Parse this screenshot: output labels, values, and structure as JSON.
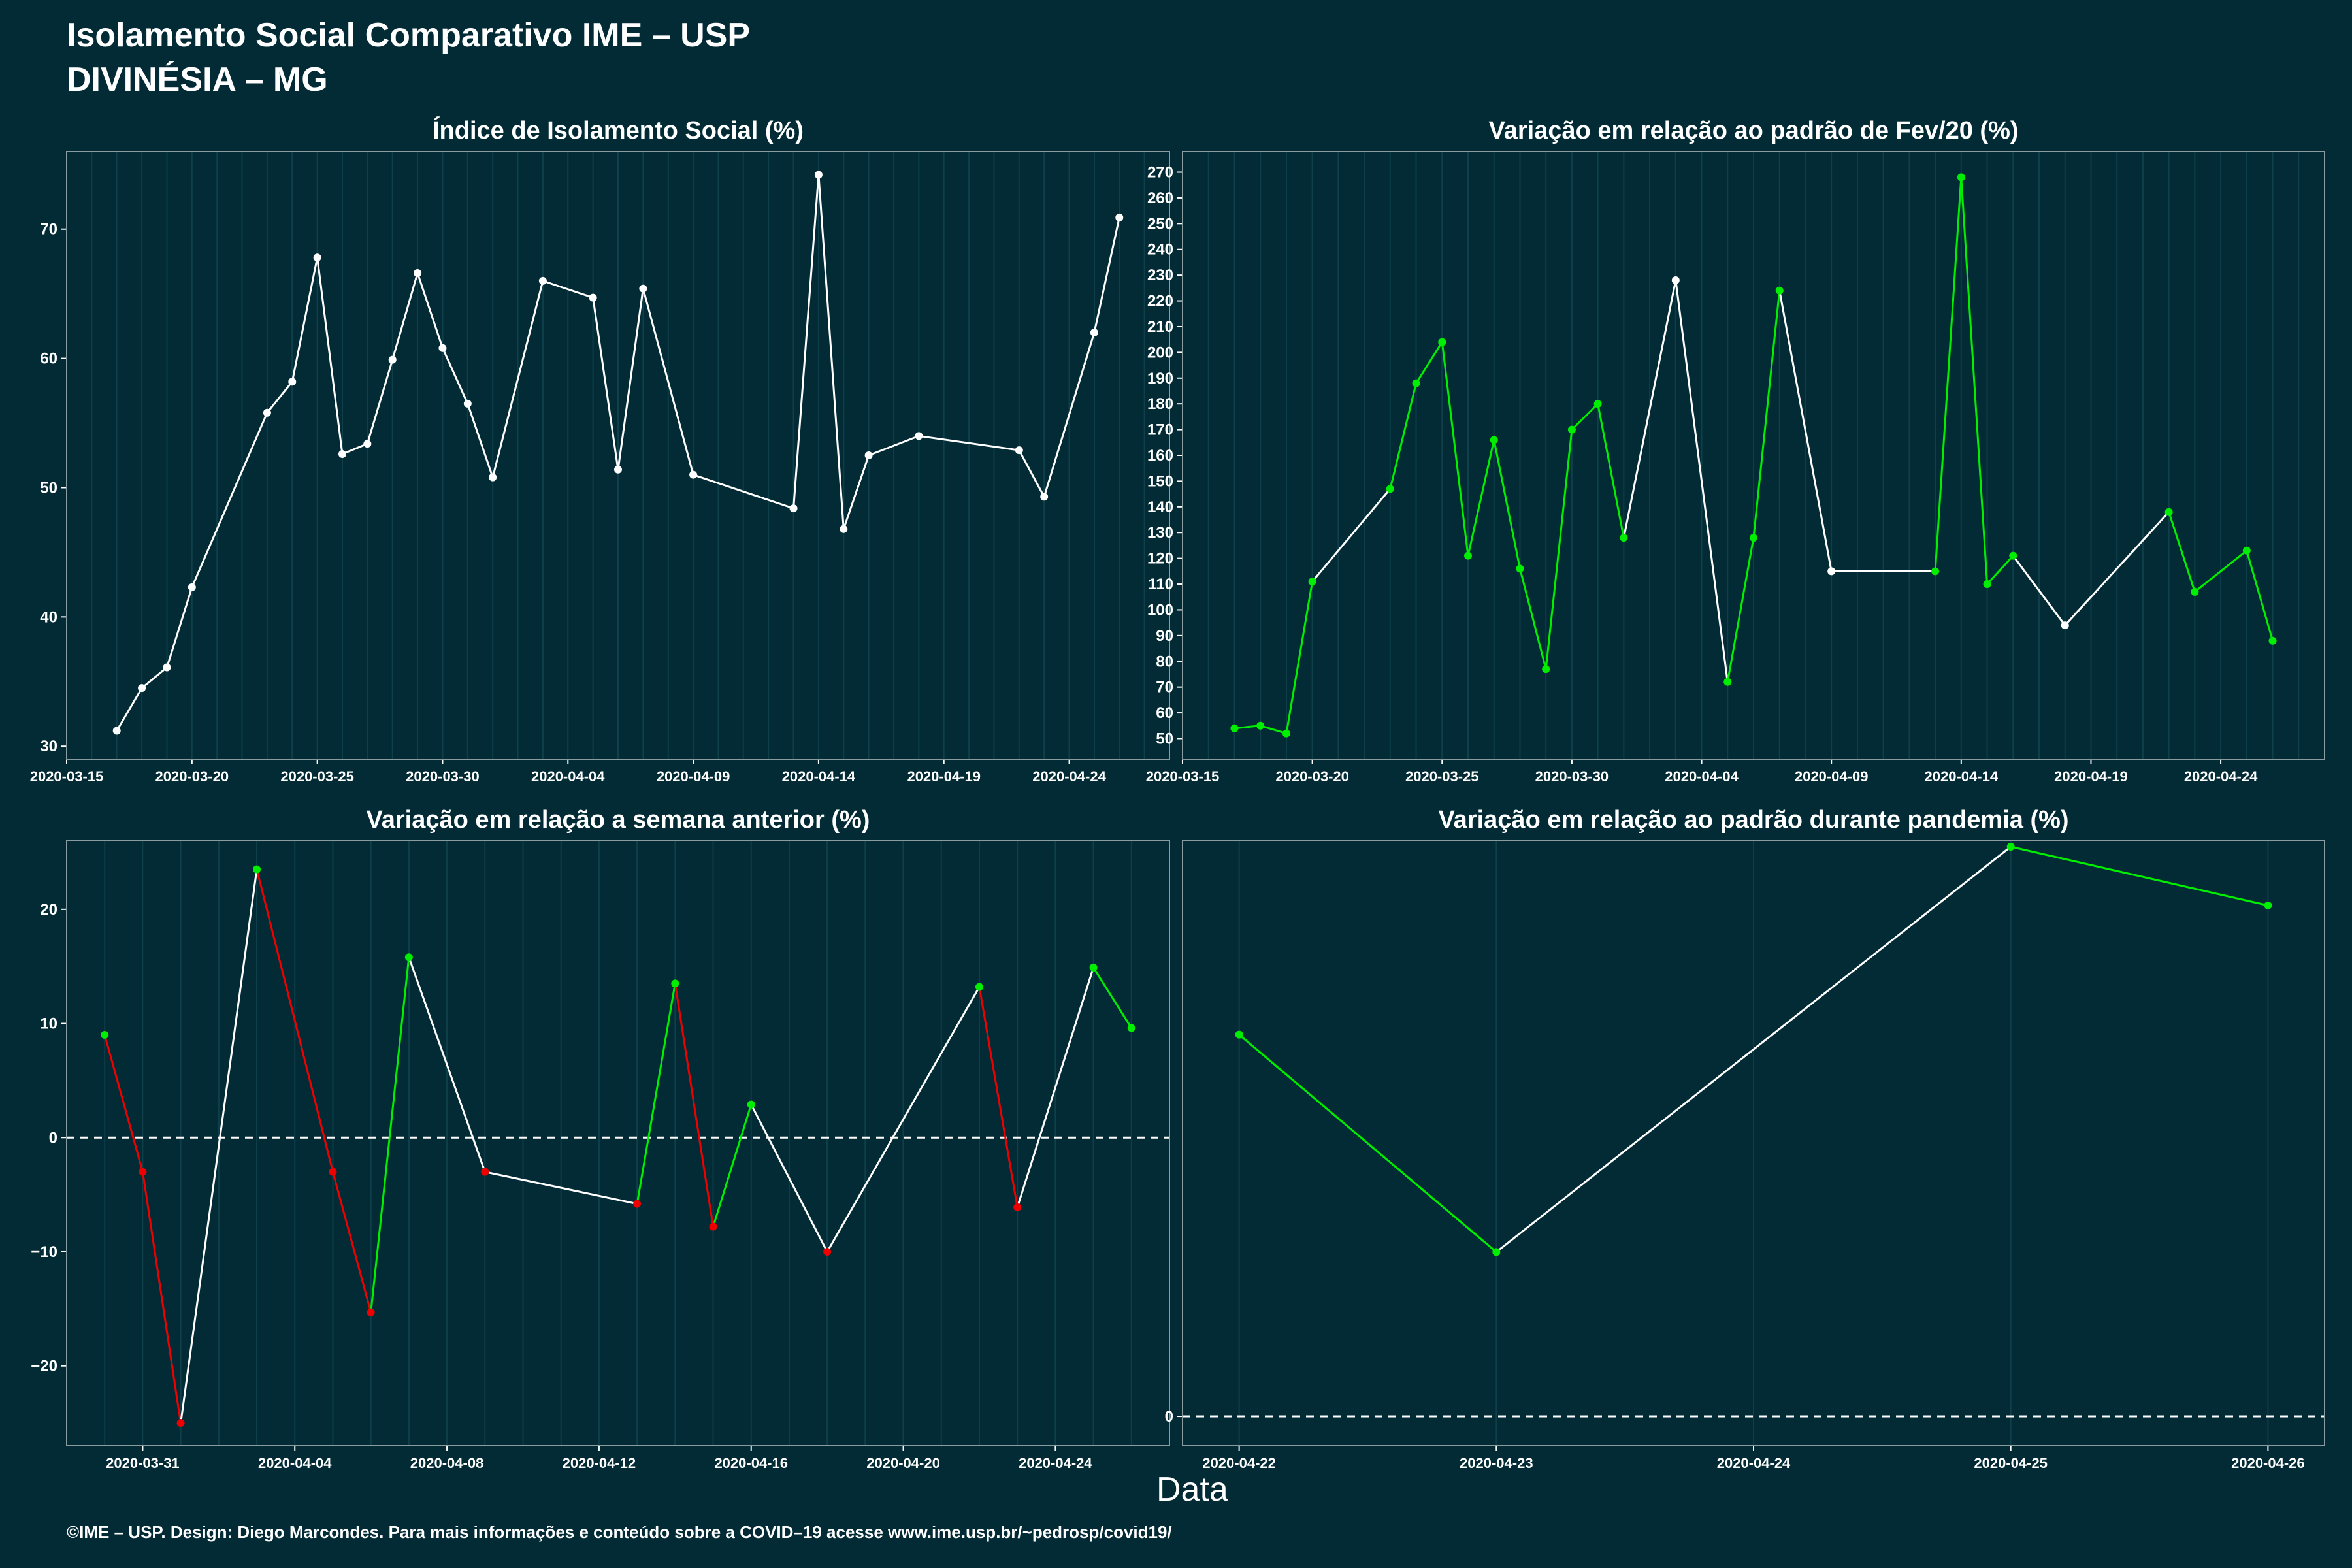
{
  "header": {
    "title_line1": "Isolamento Social Comparativo IME – USP",
    "title_line2": "DIVINÉSIA – MG"
  },
  "x_axis_label": "Data",
  "caption": "©IME – USP. Design: Diego Marcondes. Para mais informações e conteúdo sobre a COVID–19 acesse www.ime.usp.br/~pedrosp/covid19/",
  "colors": {
    "background": "#022b36",
    "line_neutral": "#ffffff",
    "increase": "#00ee00",
    "decrease": "#ee0000",
    "grid": "#0e3f4a"
  },
  "chart_data": [
    {
      "type": "line",
      "title": "Índice de Isolamento Social (%)",
      "xlim": [
        "2020-03-15",
        "2020-04-28"
      ],
      "ylim": [
        29,
        76
      ],
      "x_ticks": [
        "2020-03-15",
        "2020-03-20",
        "2020-03-25",
        "2020-03-30",
        "2020-04-04",
        "2020-04-09",
        "2020-04-14",
        "2020-04-19",
        "2020-04-24"
      ],
      "y_ticks": [
        30,
        40,
        50,
        60,
        70
      ],
      "color_mode": "none",
      "points": [
        [
          "2020-03-17",
          31.2
        ],
        [
          "2020-03-18",
          34.5
        ],
        [
          "2020-03-19",
          36.1
        ],
        [
          "2020-03-20",
          42.3
        ],
        [
          "2020-03-23",
          55.8
        ],
        [
          "2020-03-24",
          58.2
        ],
        [
          "2020-03-25",
          67.8
        ],
        [
          "2020-03-26",
          52.6
        ],
        [
          "2020-03-27",
          53.4
        ],
        [
          "2020-03-28",
          59.9
        ],
        [
          "2020-03-29",
          66.6
        ],
        [
          "2020-03-30",
          60.8
        ],
        [
          "2020-03-31",
          56.5
        ],
        [
          "2020-04-01",
          50.8
        ],
        [
          "2020-04-03",
          66.0
        ],
        [
          "2020-04-05",
          64.7
        ],
        [
          "2020-04-06",
          51.4
        ],
        [
          "2020-04-07",
          65.4
        ],
        [
          "2020-04-09",
          51.0
        ],
        [
          "2020-04-13",
          48.4
        ],
        [
          "2020-04-14",
          74.2
        ],
        [
          "2020-04-15",
          46.8
        ],
        [
          "2020-04-16",
          52.5
        ],
        [
          "2020-04-18",
          54.0
        ],
        [
          "2020-04-22",
          52.9
        ],
        [
          "2020-04-23",
          49.3
        ],
        [
          "2020-04-25",
          62.0
        ],
        [
          "2020-04-26",
          70.9
        ]
      ]
    },
    {
      "type": "line",
      "title": "Variação em relação ao padrão de Fev/20 (%)",
      "xlim": [
        "2020-03-15",
        "2020-04-28"
      ],
      "ylim": [
        42,
        278
      ],
      "x_ticks": [
        "2020-03-15",
        "2020-03-20",
        "2020-03-25",
        "2020-03-30",
        "2020-04-04",
        "2020-04-09",
        "2020-04-14",
        "2020-04-19",
        "2020-04-24"
      ],
      "y_ticks": [
        50,
        60,
        70,
        80,
        90,
        100,
        110,
        120,
        130,
        140,
        150,
        160,
        170,
        180,
        190,
        200,
        210,
        220,
        230,
        240,
        250,
        260,
        270
      ],
      "color_mode": "green_white",
      "points": [
        [
          "2020-03-17",
          54
        ],
        [
          "2020-03-18",
          55
        ],
        [
          "2020-03-19",
          52
        ],
        [
          "2020-03-20",
          111
        ],
        [
          "2020-03-23",
          147
        ],
        [
          "2020-03-24",
          188
        ],
        [
          "2020-03-25",
          204
        ],
        [
          "2020-03-26",
          121
        ],
        [
          "2020-03-27",
          166
        ],
        [
          "2020-03-28",
          116
        ],
        [
          "2020-03-29",
          77
        ],
        [
          "2020-03-30",
          170
        ],
        [
          "2020-03-31",
          180
        ],
        [
          "2020-04-01",
          128
        ],
        [
          "2020-04-03",
          228
        ],
        [
          "2020-04-05",
          72
        ],
        [
          "2020-04-06",
          128
        ],
        [
          "2020-04-07",
          224
        ],
        [
          "2020-04-09",
          115
        ],
        [
          "2020-04-13",
          115
        ],
        [
          "2020-04-14",
          268
        ],
        [
          "2020-04-15",
          110
        ],
        [
          "2020-04-16",
          121
        ],
        [
          "2020-04-18",
          94
        ],
        [
          "2020-04-22",
          138
        ],
        [
          "2020-04-23",
          107
        ],
        [
          "2020-04-25",
          123
        ],
        [
          "2020-04-26",
          88
        ]
      ],
      "segment_colors": [
        "g",
        "g",
        "g",
        "w",
        "g",
        "g",
        "g",
        "g",
        "g",
        "g",
        "g",
        "g",
        "g",
        "w",
        "w",
        "g",
        "g",
        "w",
        "w",
        "g",
        "g",
        "g",
        "w",
        "w",
        "g",
        "g",
        "g"
      ]
    },
    {
      "type": "line",
      "title": "Variação em relação a semana anterior (%)",
      "xlim": [
        "2020-03-29",
        "2020-04-27"
      ],
      "ylim": [
        -27,
        26
      ],
      "x_ticks": [
        "2020-03-31",
        "2020-04-04",
        "2020-04-08",
        "2020-04-12",
        "2020-04-16",
        "2020-04-20",
        "2020-04-24"
      ],
      "y_ticks": [
        -20,
        -10,
        0,
        10,
        20
      ],
      "zero_line": true,
      "color_mode": "gain_loss",
      "points": [
        [
          "2020-03-30",
          9.0
        ],
        [
          "2020-03-31",
          -3.0
        ],
        [
          "2020-04-01",
          -25.0
        ],
        [
          "2020-04-03",
          23.5
        ],
        [
          "2020-04-05",
          -3.0
        ],
        [
          "2020-04-06",
          -15.3
        ],
        [
          "2020-04-07",
          15.8
        ],
        [
          "2020-04-09",
          -3.0
        ],
        [
          "2020-04-13",
          -5.8
        ],
        [
          "2020-04-14",
          13.5
        ],
        [
          "2020-04-15",
          -7.8
        ],
        [
          "2020-04-16",
          2.9
        ],
        [
          "2020-04-18",
          -10.0
        ],
        [
          "2020-04-22",
          13.2
        ],
        [
          "2020-04-23",
          -6.1
        ],
        [
          "2020-04-25",
          14.9
        ],
        [
          "2020-04-26",
          9.6
        ]
      ],
      "segment_colors": [
        "r",
        "r",
        "w",
        "r",
        "r",
        "g",
        "w",
        "w",
        "g",
        "r",
        "g",
        "w",
        "w",
        "r",
        "w",
        "g"
      ]
    },
    {
      "type": "line",
      "title": "Variação em relação ao padrão durante pandemia (%)",
      "xlim": [
        "2020-04-21.78",
        "2020-04-26.22"
      ],
      "ylim": [
        -0.5,
        9.8
      ],
      "x_ticks": [
        "2020-04-22",
        "2020-04-23",
        "2020-04-24",
        "2020-04-25",
        "2020-04-26"
      ],
      "y_ticks": [
        0
      ],
      "zero_line": true,
      "color_mode": "green_white",
      "points": [
        [
          "2020-04-22",
          6.5
        ],
        [
          "2020-04-23",
          2.8
        ],
        [
          "2020-04-25",
          9.7
        ],
        [
          "2020-04-26",
          8.7
        ]
      ],
      "segment_colors": [
        "g",
        "w",
        "g"
      ]
    }
  ]
}
